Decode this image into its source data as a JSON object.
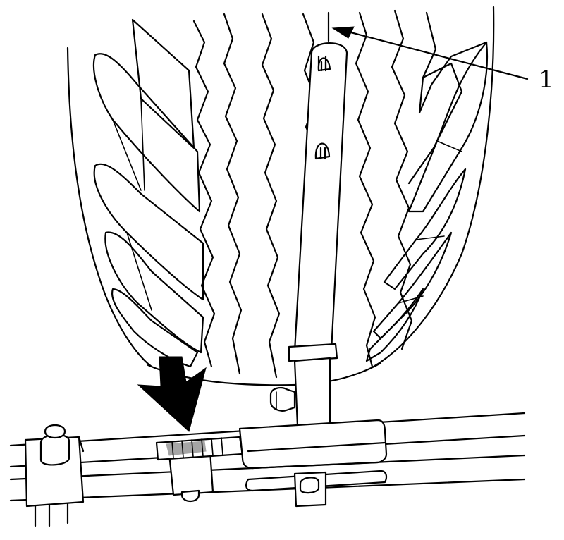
{
  "figure": {
    "callouts": [
      {
        "label": "1"
      }
    ],
    "colors": {
      "ink": "#000000",
      "paper": "#ffffff"
    }
  }
}
